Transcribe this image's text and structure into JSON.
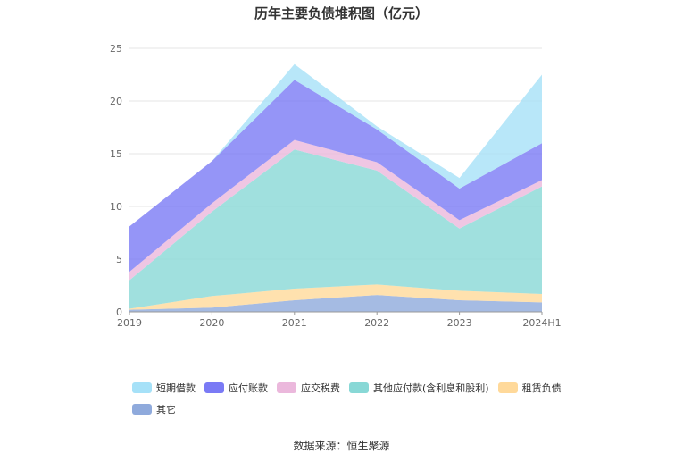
{
  "chart_data": {
    "type": "area",
    "stacked": true,
    "title": "历年主要负债堆积图（亿元）",
    "categories": [
      "2019",
      "2020",
      "2021",
      "2022",
      "2023",
      "2024H1"
    ],
    "ylim": [
      0,
      25
    ],
    "yticks": [
      "0",
      "5",
      "10",
      "15",
      "20",
      "25"
    ],
    "grid": true,
    "legend_position": "bottom",
    "series": [
      {
        "name": "其它",
        "color": "#8FAADC",
        "values": [
          0.2,
          0.4,
          1.1,
          1.6,
          1.1,
          0.9
        ]
      },
      {
        "name": "租赁负债",
        "color": "#FFD99A",
        "values": [
          0.1,
          1.1,
          1.1,
          1.0,
          0.9,
          0.8
        ]
      },
      {
        "name": "其他应付款(含利息和股利)",
        "color": "#88D8D6",
        "values": [
          2.7,
          8.0,
          13.2,
          10.8,
          5.9,
          10.2
        ]
      },
      {
        "name": "应交税费",
        "color": "#EBB8DC",
        "values": [
          0.8,
          0.8,
          0.9,
          0.8,
          0.8,
          0.6
        ]
      },
      {
        "name": "应付账款",
        "color": "#7A7AF5",
        "values": [
          4.3,
          4.0,
          5.7,
          3.1,
          3.0,
          3.5
        ]
      },
      {
        "name": "短期借款",
        "color": "#A6E1F8",
        "values": [
          0,
          0,
          1.5,
          0.3,
          1.0,
          6.5
        ]
      }
    ]
  },
  "legend_order": [
    5,
    4,
    3,
    2,
    1,
    0
  ],
  "source_note": "数据来源：恒生聚源"
}
